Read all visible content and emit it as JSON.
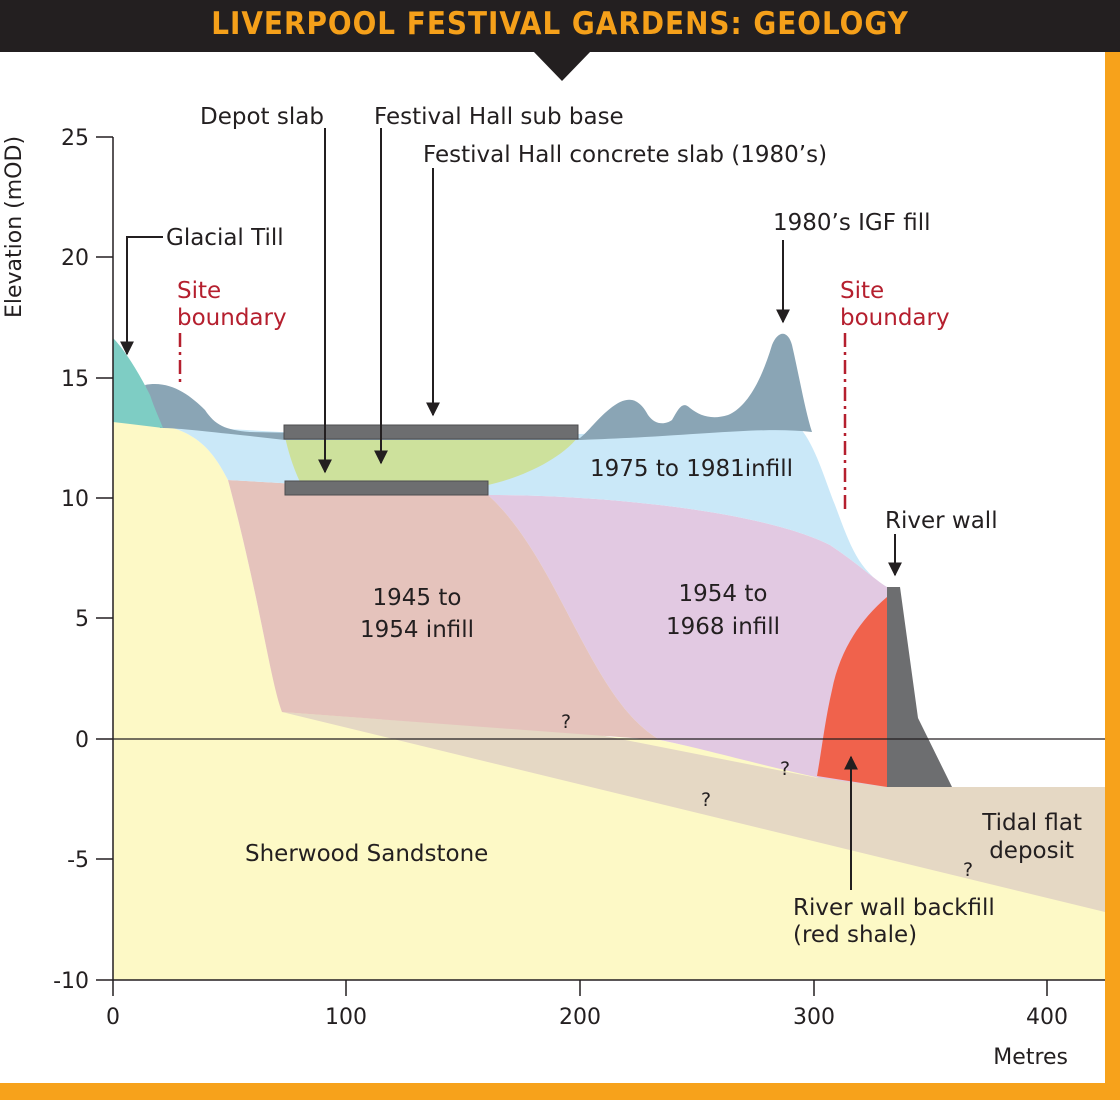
{
  "title": "LIVERPOOL FESTIVAL GARDENS: GEOLOGY",
  "axes": {
    "y_label": "Elevation (mOD)",
    "x_label": "Metres",
    "y_ticks": [
      "25",
      "20",
      "15",
      "10",
      "5",
      "0",
      "-5",
      "-10"
    ],
    "x_ticks": [
      "0",
      "100",
      "200",
      "300",
      "400"
    ]
  },
  "layers": {
    "glacial_till": "Glacial Till",
    "infill_1975": "1975 to 1981infill",
    "infill_1945_l1": "1945 to",
    "infill_1945_l2": "1954 infill",
    "infill_1954_l1": "1954 to",
    "infill_1954_l2": "1968 infill",
    "sandstone": "Sherwood Sandstone",
    "tidal_l1": "Tidal flat",
    "tidal_l2": "deposit",
    "backfill_l1": "River wall backfill",
    "backfill_l2": "(red shale)"
  },
  "structures": {
    "depot_slab": "Depot slab",
    "fh_sub_base": "Festival Hall sub base",
    "fh_concrete": "Festival Hall concrete slab (1980’s)",
    "igf_fill": "1980’s IGF fill",
    "river_wall": "River wall",
    "site_boundary_l1": "Site",
    "site_boundary_l2": "boundary"
  },
  "unknown_marker": "?",
  "colors": {
    "title_bar": "#231f20",
    "title_text": "#f5a01a",
    "frame": "#f7a21b",
    "sandstone": "#fdf9c6",
    "tidal_flat": "#e5d8c4",
    "infill_1945": "#e5c3bc",
    "infill_1954": "#e2c9e2",
    "infill_1975": "#cae8f8",
    "sub_base": "#cde19c",
    "igf_fill": "#8aa5b5",
    "glacial_till": "#7ecdc4",
    "red_shale": "#f0624c",
    "river_wall": "#6d6e70",
    "site_boundary": "#b51f2e"
  }
}
